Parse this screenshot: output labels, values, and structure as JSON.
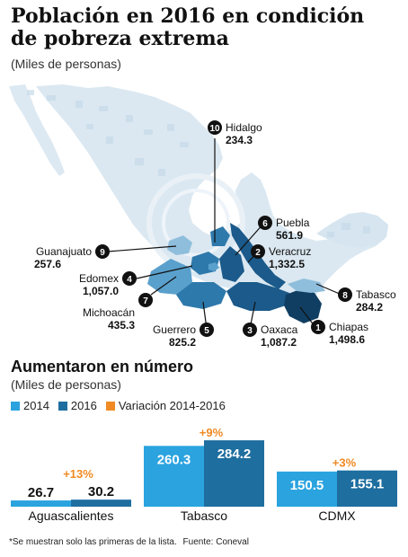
{
  "title": "Población en 2016 en condición de pobreza extrema",
  "subtitle": "(Miles de personas)",
  "map": {
    "colors": {
      "light": "#5aa0cc",
      "mid": "#2e79ab",
      "dark": "#1b5a8a",
      "land": "#cfe0ec",
      "land_dark": "#bcd3e4"
    },
    "states": [
      {
        "rank": "1",
        "name": "Chiapas",
        "value": "1,498.6"
      },
      {
        "rank": "2",
        "name": "Veracruz",
        "value": "1,332.5"
      },
      {
        "rank": "3",
        "name": "Oaxaca",
        "value": "1,087.2"
      },
      {
        "rank": "4",
        "name": "Edomex",
        "value": "1,057.0"
      },
      {
        "rank": "5",
        "name": "Guerrero",
        "value": "825.2"
      },
      {
        "rank": "6",
        "name": "Puebla",
        "value": "561.9"
      },
      {
        "rank": "7",
        "name": "Michoacán",
        "value": "435.3"
      },
      {
        "rank": "8",
        "name": "Tabasco",
        "value": "284.2"
      },
      {
        "rank": "9",
        "name": "Guanajuato",
        "value": "257.6"
      },
      {
        "rank": "10",
        "name": "Hidalgo",
        "value": "234.3"
      }
    ]
  },
  "section2": {
    "title": "Aumentaron en número",
    "subtitle": "(Miles de personas)",
    "legend": [
      {
        "label": "2014",
        "color": "#2aa3df"
      },
      {
        "label": "2016",
        "color": "#1e6e9f"
      },
      {
        "label": "Variación 2014-2016",
        "color": "#f08a24"
      }
    ]
  },
  "chart_data": {
    "type": "bar",
    "categories": [
      "Aguascalientes",
      "Tabasco",
      "CDMX"
    ],
    "series": [
      {
        "name": "2014",
        "values": [
          26.7,
          260.3,
          150.5
        ]
      },
      {
        "name": "2016",
        "values": [
          30.2,
          284.2,
          155.1
        ]
      }
    ],
    "variation": [
      "+13%",
      "+9%",
      "+3%"
    ],
    "colors": {
      "2014": "#2aa3df",
      "2016": "#1e6e9f",
      "variation": "#f08a24"
    }
  },
  "footnote": "*Se muestran solo las primeras de la lista.",
  "source": "Fuente: Coneval"
}
